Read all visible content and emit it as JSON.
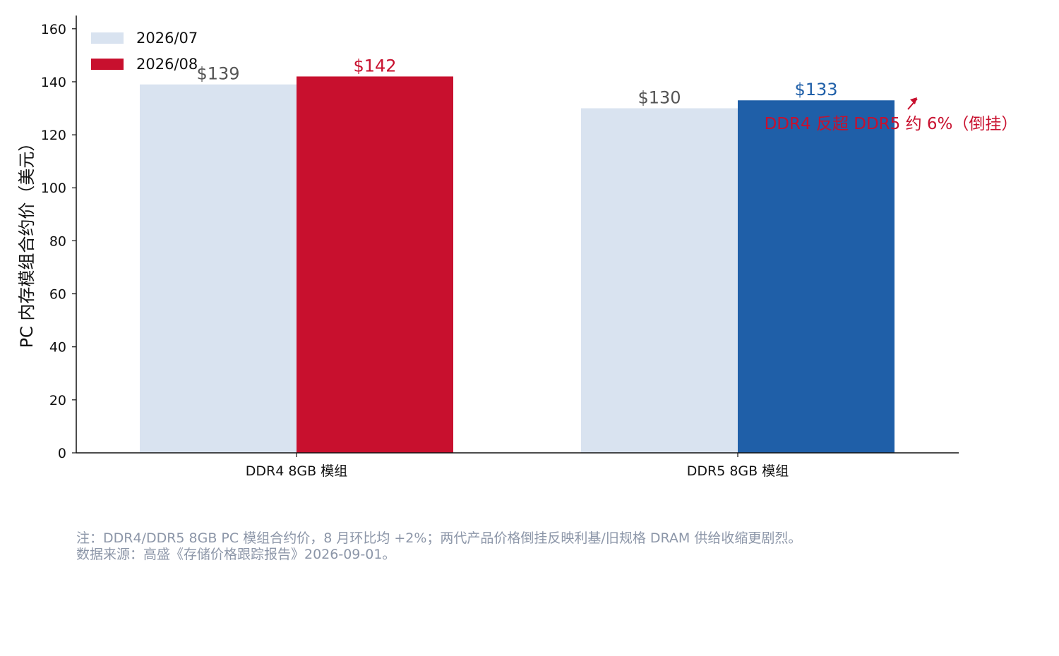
{
  "chart_data": {
    "type": "bar",
    "categories": [
      "DDR4 8GB 模组",
      "DDR5 8GB 模组"
    ],
    "series": [
      {
        "name": "2026/07",
        "values": [
          139,
          130
        ],
        "color": "#d9e3f0"
      },
      {
        "name": "2026/08",
        "values": [
          142,
          133
        ],
        "colors": [
          "#c8102e",
          "#1f5fa8"
        ]
      }
    ],
    "value_labels": [
      [
        "$139",
        "$130"
      ],
      [
        "$142",
        "$133"
      ]
    ],
    "value_label_colors": [
      [
        "#555555",
        "#555555"
      ],
      [
        "#c8102e",
        "#1f5fa8"
      ]
    ],
    "ylabel": "PC 内存模组合约价（美元）",
    "xlabel": "",
    "ylim": [
      0,
      165
    ],
    "yticks": [
      0,
      20,
      40,
      60,
      80,
      100,
      120,
      140,
      160
    ],
    "legend_position": "top-left",
    "grid": false,
    "annotation": {
      "text": "DDR4 反超 DDR5 约 6%（倒挂）",
      "color": "#c8102e"
    }
  },
  "notes": {
    "line1": "注：DDR4/DDR5 8GB PC 模组合约价，8 月环比均 +2%；两代产品价格倒挂反映利基/旧规格 DRAM 供给收缩更剧烈。",
    "line2": "数据来源：高盛《存储价格跟踪报告》2026-09-01。"
  }
}
